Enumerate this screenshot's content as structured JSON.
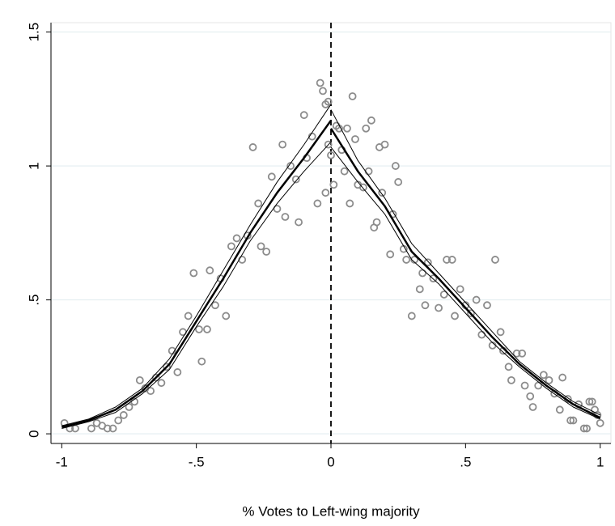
{
  "chart_data": {
    "type": "scatter",
    "x_label": "% Votes to Left-wing majority",
    "xlim": [
      -1.04,
      1.04
    ],
    "ylim": [
      -0.036,
      1.535
    ],
    "xticks": [
      {
        "value": -1,
        "label": "-1"
      },
      {
        "value": -0.5,
        "label": "-.5"
      },
      {
        "value": 0,
        "label": "0"
      },
      {
        "value": 0.5,
        "label": ".5"
      },
      {
        "value": 1,
        "label": "1"
      }
    ],
    "yticks": [
      0,
      {
        "value": 0.5,
        "label": ".5"
      },
      1,
      1.5
    ],
    "grid": true,
    "vlines": [
      0
    ],
    "series": [
      {
        "type": "scatter",
        "color": "#8c8c8c",
        "x": [
          -0.99,
          -0.97,
          -0.95,
          -0.89,
          -0.87,
          -0.85,
          -0.83,
          -0.81,
          -0.79,
          -0.77,
          -0.75,
          -0.73,
          -0.71,
          -0.69,
          -0.67,
          -0.65,
          -0.63,
          -0.61,
          -0.59,
          -0.57,
          -0.55,
          -0.53,
          -0.51,
          -0.49,
          -0.48,
          -0.46,
          -0.45,
          -0.43,
          -0.41,
          -0.39,
          -0.37,
          -0.35,
          -0.33,
          -0.31,
          -0.29,
          -0.27,
          -0.26,
          -0.24,
          -0.22,
          -0.2,
          -0.18,
          -0.17,
          -0.15,
          -0.13,
          -0.12,
          -0.1,
          -0.09,
          -0.07,
          -0.05,
          -0.04,
          -0.03,
          -0.02,
          -0.02,
          -0.01,
          -0.01,
          0,
          0.01,
          0.02,
          0.03,
          0.04,
          0.05,
          0.06,
          0.07,
          0.08,
          0.09,
          0.1,
          0.12,
          0.13,
          0.14,
          0.15,
          0.16,
          0.17,
          0.18,
          0.19,
          0.2,
          0.22,
          0.23,
          0.24,
          0.25,
          0.27,
          0.28,
          0.3,
          0.31,
          0.33,
          0.34,
          0.35,
          0.36,
          0.38,
          0.4,
          0.42,
          0.43,
          0.45,
          0.46,
          0.48,
          0.5,
          0.52,
          0.54,
          0.56,
          0.58,
          0.6,
          0.61,
          0.63,
          0.64,
          0.66,
          0.67,
          0.69,
          0.71,
          0.72,
          0.74,
          0.75,
          0.77,
          0.79,
          0.81,
          0.83,
          0.85,
          0.86,
          0.88,
          0.89,
          0.9,
          0.92,
          0.94,
          0.95,
          0.96,
          0.97,
          0.98,
          0.99,
          1.0
        ],
        "values": [
          0.04,
          0.02,
          0.02,
          0.02,
          0.04,
          0.03,
          0.02,
          0.02,
          0.05,
          0.07,
          0.1,
          0.12,
          0.2,
          0.17,
          0.16,
          0.21,
          0.19,
          0.25,
          0.31,
          0.23,
          0.38,
          0.44,
          0.6,
          0.39,
          0.27,
          0.39,
          0.61,
          0.48,
          0.58,
          0.44,
          0.7,
          0.73,
          0.65,
          0.74,
          1.07,
          0.86,
          0.7,
          0.68,
          0.96,
          0.84,
          1.08,
          0.81,
          1.0,
          0.95,
          0.79,
          1.19,
          1.03,
          1.11,
          0.86,
          1.31,
          1.28,
          1.23,
          0.9,
          1.08,
          1.24,
          1.04,
          0.93,
          1.15,
          1.14,
          1.06,
          0.98,
          1.14,
          0.86,
          1.26,
          1.1,
          0.93,
          0.92,
          1.14,
          0.98,
          1.17,
          0.77,
          0.79,
          1.07,
          0.9,
          1.08,
          0.67,
          0.82,
          1.0,
          0.94,
          0.69,
          0.65,
          0.44,
          0.65,
          0.54,
          0.6,
          0.48,
          0.64,
          0.58,
          0.47,
          0.52,
          0.65,
          0.65,
          0.44,
          0.54,
          0.48,
          0.45,
          0.5,
          0.37,
          0.48,
          0.33,
          0.65,
          0.38,
          0.31,
          0.25,
          0.2,
          0.3,
          0.3,
          0.18,
          0.14,
          0.1,
          0.18,
          0.22,
          0.2,
          0.15,
          0.09,
          0.21,
          0.13,
          0.05,
          0.05,
          0.11,
          0.02,
          0.02,
          0.12,
          0.12,
          0.09,
          0.07,
          0.04
        ]
      },
      {
        "type": "line",
        "color": "#000000",
        "linewidth": 1,
        "x": [
          -1,
          -0.9,
          -0.8,
          -0.7,
          -0.6,
          -0.5,
          -0.4,
          -0.3,
          -0.2,
          -0.1,
          0
        ],
        "values": [
          0.03,
          0.055,
          0.1,
          0.17,
          0.28,
          0.44,
          0.61,
          0.78,
          0.94,
          1.08,
          1.23
        ]
      },
      {
        "type": "line",
        "color": "#000000",
        "linewidth": 1,
        "x": [
          -1,
          -0.9,
          -0.8,
          -0.7,
          -0.6,
          -0.5,
          -0.4,
          -0.3,
          -0.2,
          -0.1,
          0
        ],
        "values": [
          0.02,
          0.045,
          0.08,
          0.15,
          0.24,
          0.4,
          0.55,
          0.72,
          0.86,
          0.98,
          1.09
        ]
      },
      {
        "type": "line",
        "color": "#000000",
        "linewidth": 2.5,
        "x": [
          -1,
          -0.9,
          -0.8,
          -0.7,
          -0.6,
          -0.5,
          -0.4,
          -0.3,
          -0.2,
          -0.1,
          0
        ],
        "values": [
          0.025,
          0.05,
          0.09,
          0.16,
          0.26,
          0.42,
          0.58,
          0.75,
          0.9,
          1.03,
          1.17
        ]
      },
      {
        "type": "line",
        "color": "#000000",
        "linewidth": 1,
        "x": [
          0,
          0.1,
          0.2,
          0.3,
          0.4,
          0.5,
          0.6,
          0.7,
          0.8,
          0.9,
          1
        ],
        "values": [
          1.21,
          1.02,
          0.88,
          0.71,
          0.6,
          0.49,
          0.38,
          0.27,
          0.19,
          0.12,
          0.07
        ]
      },
      {
        "type": "line",
        "color": "#000000",
        "linewidth": 1,
        "x": [
          0,
          0.1,
          0.2,
          0.3,
          0.4,
          0.5,
          0.6,
          0.7,
          0.8,
          0.9,
          1
        ],
        "values": [
          1.07,
          0.94,
          0.82,
          0.65,
          0.56,
          0.45,
          0.34,
          0.25,
          0.17,
          0.1,
          0.055
        ]
      },
      {
        "type": "line",
        "color": "#000000",
        "linewidth": 2.5,
        "x": [
          0,
          0.1,
          0.2,
          0.3,
          0.4,
          0.5,
          0.6,
          0.7,
          0.8,
          0.9,
          1
        ],
        "values": [
          1.14,
          0.98,
          0.85,
          0.68,
          0.58,
          0.47,
          0.36,
          0.26,
          0.18,
          0.11,
          0.06
        ]
      }
    ]
  }
}
